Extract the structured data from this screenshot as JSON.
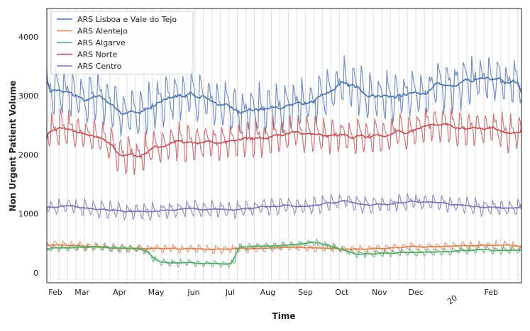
{
  "chart_data": {
    "type": "line",
    "title": "",
    "xlabel": "Time",
    "ylabel": "Non Urgent Patient Volume",
    "ylim": [
      -170,
      4480
    ],
    "yticks": [
      0,
      1000,
      2000,
      3000,
      4000
    ],
    "x_range_days": [
      0,
      391
    ],
    "x_ticks": [
      {
        "label": "Feb",
        "day": 0
      },
      {
        "label": "Mar",
        "day": 29
      },
      {
        "label": "Apr",
        "day": 60
      },
      {
        "label": "May",
        "day": 90
      },
      {
        "label": "Jun",
        "day": 121
      },
      {
        "label": "Jul",
        "day": 151
      },
      {
        "label": "Aug",
        "day": 182
      },
      {
        "label": "Sep",
        "day": 213
      },
      {
        "label": "Oct",
        "day": 243
      },
      {
        "label": "Nov",
        "day": 274
      },
      {
        "label": "Dec",
        "day": 304
      },
      {
        "label": "20",
        "day": 335,
        "rotated": true
      },
      {
        "label": "Feb",
        "day": 366
      }
    ],
    "legend_position": "top-left",
    "series": [
      {
        "name": "ARS Lisboa e Vale do Tejo",
        "color": "#4c72b0",
        "amplitude": 360,
        "trend": [
          [
            0,
            3050
          ],
          [
            15,
            3100
          ],
          [
            30,
            2950
          ],
          [
            45,
            3000
          ],
          [
            60,
            2780
          ],
          [
            75,
            2720
          ],
          [
            90,
            2850
          ],
          [
            105,
            3020
          ],
          [
            120,
            3020
          ],
          [
            135,
            2950
          ],
          [
            150,
            2820
          ],
          [
            165,
            2780
          ],
          [
            180,
            2780
          ],
          [
            195,
            2850
          ],
          [
            210,
            2880
          ],
          [
            225,
            2950
          ],
          [
            245,
            3250
          ],
          [
            260,
            3080
          ],
          [
            275,
            3020
          ],
          [
            290,
            3000
          ],
          [
            305,
            3050
          ],
          [
            320,
            3150
          ],
          [
            335,
            3200
          ],
          [
            350,
            3280
          ],
          [
            365,
            3380
          ],
          [
            380,
            3250
          ],
          [
            391,
            3300
          ]
        ]
      },
      {
        "name": "ARS Alentejo",
        "color": "#dd8452",
        "amplitude": 60,
        "trend": [
          [
            0,
            480
          ],
          [
            20,
            470
          ],
          [
            40,
            440
          ],
          [
            60,
            420
          ],
          [
            80,
            410
          ],
          [
            100,
            420
          ],
          [
            120,
            410
          ],
          [
            140,
            400
          ],
          [
            160,
            410
          ],
          [
            180,
            420
          ],
          [
            200,
            430
          ],
          [
            220,
            420
          ],
          [
            240,
            410
          ],
          [
            260,
            400
          ],
          [
            280,
            420
          ],
          [
            300,
            440
          ],
          [
            320,
            450
          ],
          [
            340,
            460
          ],
          [
            360,
            470
          ],
          [
            380,
            470
          ],
          [
            391,
            465
          ]
        ]
      },
      {
        "name": "ARS Algarve",
        "color": "#55a868",
        "amplitude": 50,
        "trend": [
          [
            0,
            420
          ],
          [
            20,
            430
          ],
          [
            40,
            440
          ],
          [
            60,
            420
          ],
          [
            75,
            410
          ],
          [
            82,
            380
          ],
          [
            88,
            250
          ],
          [
            95,
            180
          ],
          [
            130,
            160
          ],
          [
            150,
            150
          ],
          [
            155,
            170
          ],
          [
            156,
            440
          ],
          [
            170,
            450
          ],
          [
            190,
            460
          ],
          [
            205,
            480
          ],
          [
            212,
            500
          ],
          [
            220,
            520
          ],
          [
            230,
            480
          ],
          [
            245,
            380
          ],
          [
            255,
            320
          ],
          [
            270,
            330
          ],
          [
            290,
            340
          ],
          [
            310,
            350
          ],
          [
            330,
            360
          ],
          [
            345,
            380
          ],
          [
            360,
            400
          ],
          [
            375,
            380
          ],
          [
            391,
            390
          ]
        ]
      },
      {
        "name": "ARS Norte",
        "color": "#c44e52",
        "amplitude": 260,
        "trend": [
          [
            0,
            2420
          ],
          [
            15,
            2480
          ],
          [
            30,
            2350
          ],
          [
            45,
            2300
          ],
          [
            60,
            2050
          ],
          [
            75,
            2000
          ],
          [
            90,
            2150
          ],
          [
            105,
            2250
          ],
          [
            120,
            2200
          ],
          [
            135,
            2200
          ],
          [
            150,
            2260
          ],
          [
            165,
            2300
          ],
          [
            180,
            2300
          ],
          [
            195,
            2360
          ],
          [
            210,
            2380
          ],
          [
            225,
            2320
          ],
          [
            245,
            2350
          ],
          [
            260,
            2320
          ],
          [
            275,
            2300
          ],
          [
            290,
            2400
          ],
          [
            305,
            2450
          ],
          [
            320,
            2550
          ],
          [
            335,
            2500
          ],
          [
            350,
            2450
          ],
          [
            365,
            2500
          ],
          [
            380,
            2380
          ],
          [
            391,
            2400
          ]
        ]
      },
      {
        "name": "ARS Centro",
        "color": "#8172b3",
        "amplitude": 120,
        "trend": [
          [
            0,
            1130
          ],
          [
            20,
            1130
          ],
          [
            40,
            1080
          ],
          [
            60,
            1060
          ],
          [
            80,
            1040
          ],
          [
            100,
            1080
          ],
          [
            120,
            1080
          ],
          [
            140,
            1080
          ],
          [
            160,
            1080
          ],
          [
            180,
            1130
          ],
          [
            200,
            1150
          ],
          [
            220,
            1140
          ],
          [
            245,
            1220
          ],
          [
            260,
            1160
          ],
          [
            280,
            1160
          ],
          [
            300,
            1210
          ],
          [
            320,
            1210
          ],
          [
            340,
            1150
          ],
          [
            360,
            1120
          ],
          [
            380,
            1110
          ],
          [
            391,
            1100
          ]
        ]
      }
    ]
  }
}
